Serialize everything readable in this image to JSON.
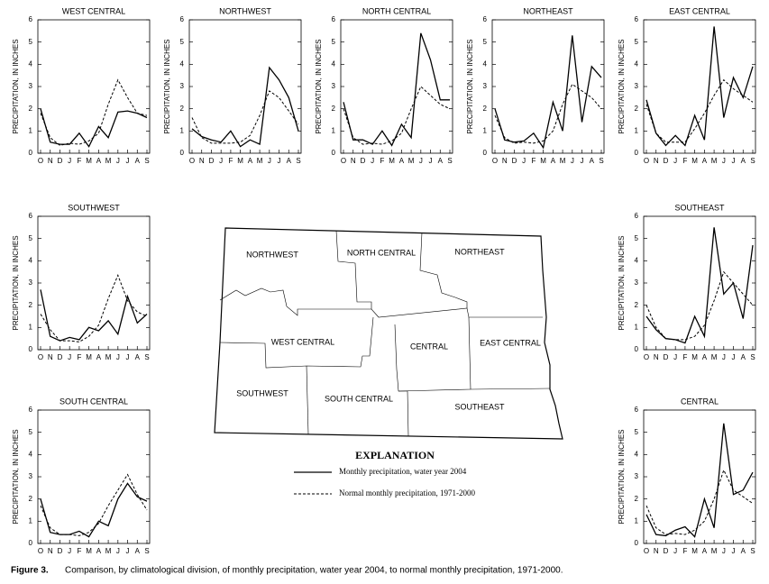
{
  "chart_data": [
    {
      "type": "line",
      "title": "WEST CENTRAL",
      "y_label": "PRECIPITATION, IN INCHES",
      "categories": [
        "O",
        "N",
        "D",
        "J",
        "F",
        "M",
        "A",
        "M",
        "J",
        "J",
        "A",
        "S"
      ],
      "ylim": [
        0,
        6
      ],
      "yticks": [
        0,
        1,
        2,
        3,
        4,
        5,
        6
      ],
      "series": [
        {
          "style": "solid",
          "color": "#000000",
          "values": [
            2.0,
            0.5,
            0.4,
            0.4,
            0.9,
            0.3,
            1.2,
            0.7,
            1.85,
            1.9,
            1.8,
            1.6
          ]
        },
        {
          "style": "dashed",
          "color": "#000000",
          "values": [
            1.8,
            0.7,
            0.35,
            0.45,
            0.4,
            0.55,
            0.9,
            2.2,
            3.3,
            2.5,
            1.8,
            1.7
          ]
        }
      ]
    },
    {
      "type": "line",
      "title": "NORTHWEST",
      "y_label": "PRECIPITATION, IN INCHES",
      "categories": [
        "O",
        "N",
        "D",
        "J",
        "F",
        "M",
        "A",
        "M",
        "J",
        "J",
        "A",
        "S"
      ],
      "ylim": [
        0,
        6
      ],
      "yticks": [
        0,
        1,
        2,
        3,
        4,
        5,
        6
      ],
      "series": [
        {
          "style": "solid",
          "color": "#000000",
          "values": [
            1.1,
            0.75,
            0.6,
            0.5,
            1.0,
            0.3,
            0.6,
            0.4,
            3.85,
            3.3,
            2.5,
            1.0
          ]
        },
        {
          "style": "dashed",
          "color": "#000000",
          "values": [
            1.6,
            0.7,
            0.45,
            0.45,
            0.45,
            0.5,
            0.8,
            1.7,
            2.8,
            2.5,
            1.9,
            1.3
          ]
        }
      ]
    },
    {
      "type": "line",
      "title": "NORTH CENTRAL",
      "y_label": "PRECIPITATION, IN INCHES",
      "categories": [
        "O",
        "N",
        "D",
        "J",
        "F",
        "M",
        "A",
        "M",
        "J",
        "J",
        "A",
        "S"
      ],
      "ylim": [
        0,
        6
      ],
      "yticks": [
        0,
        1,
        2,
        3,
        4,
        5,
        6
      ],
      "series": [
        {
          "style": "solid",
          "color": "#000000",
          "values": [
            2.3,
            0.6,
            0.6,
            0.4,
            1.0,
            0.35,
            1.3,
            0.7,
            5.4,
            4.2,
            2.4,
            2.4
          ]
        },
        {
          "style": "dashed",
          "color": "#000000",
          "values": [
            2.0,
            0.7,
            0.4,
            0.45,
            0.4,
            0.55,
            0.9,
            2.0,
            3.0,
            2.6,
            2.2,
            2.0
          ]
        }
      ]
    },
    {
      "type": "line",
      "title": "NORTHEAST",
      "y_label": "PRECIPITATION, IN INCHES",
      "categories": [
        "O",
        "N",
        "D",
        "J",
        "F",
        "M",
        "A",
        "M",
        "J",
        "J",
        "A",
        "S"
      ],
      "ylim": [
        0,
        6
      ],
      "yticks": [
        0,
        1,
        2,
        3,
        4,
        5,
        6
      ],
      "series": [
        {
          "style": "solid",
          "color": "#000000",
          "values": [
            2.0,
            0.6,
            0.5,
            0.55,
            0.9,
            0.25,
            2.3,
            1.0,
            5.3,
            1.4,
            3.9,
            3.4
          ]
        },
        {
          "style": "dashed",
          "color": "#000000",
          "values": [
            1.7,
            0.7,
            0.45,
            0.5,
            0.45,
            0.55,
            1.0,
            2.2,
            3.1,
            2.8,
            2.5,
            2.0
          ]
        }
      ]
    },
    {
      "type": "line",
      "title": "EAST CENTRAL",
      "y_label": "PRECIPITATION, IN INCHES",
      "categories": [
        "O",
        "N",
        "D",
        "J",
        "F",
        "M",
        "A",
        "M",
        "J",
        "J",
        "A",
        "S"
      ],
      "ylim": [
        0,
        6
      ],
      "yticks": [
        0,
        1,
        2,
        3,
        4,
        5,
        6
      ],
      "series": [
        {
          "style": "solid",
          "color": "#000000",
          "values": [
            2.4,
            0.9,
            0.35,
            0.8,
            0.35,
            1.7,
            0.6,
            5.7,
            1.6,
            3.4,
            2.5,
            3.9
          ]
        },
        {
          "style": "dashed",
          "color": "#000000",
          "values": [
            2.2,
            0.9,
            0.5,
            0.5,
            0.5,
            1.1,
            1.8,
            2.6,
            3.3,
            2.9,
            2.6,
            2.3
          ]
        }
      ]
    },
    {
      "type": "line",
      "title": "SOUTHWEST",
      "y_label": "PRECIPITATION, IN INCHES",
      "categories": [
        "O",
        "N",
        "D",
        "J",
        "F",
        "M",
        "A",
        "M",
        "J",
        "J",
        "A",
        "S"
      ],
      "ylim": [
        0,
        6
      ],
      "yticks": [
        0,
        1,
        2,
        3,
        4,
        5,
        6
      ],
      "series": [
        {
          "style": "solid",
          "color": "#000000",
          "values": [
            2.7,
            0.6,
            0.4,
            0.55,
            0.45,
            1.0,
            0.85,
            1.3,
            0.7,
            2.4,
            1.2,
            1.6
          ]
        },
        {
          "style": "dashed",
          "color": "#000000",
          "values": [
            1.6,
            0.9,
            0.4,
            0.4,
            0.35,
            0.6,
            1.1,
            2.3,
            3.35,
            2.2,
            1.7,
            1.5
          ]
        }
      ]
    },
    {
      "type": "line",
      "title": "SOUTHEAST",
      "y_label": "PRECIPITATION, IN INCHES",
      "categories": [
        "O",
        "N",
        "D",
        "J",
        "F",
        "M",
        "A",
        "M",
        "J",
        "J",
        "A",
        "S"
      ],
      "ylim": [
        0,
        6
      ],
      "yticks": [
        0,
        1,
        2,
        3,
        4,
        5,
        6
      ],
      "series": [
        {
          "style": "solid",
          "color": "#000000",
          "values": [
            1.5,
            0.9,
            0.5,
            0.45,
            0.3,
            1.5,
            0.6,
            5.5,
            2.5,
            3.0,
            1.4,
            4.7
          ]
        },
        {
          "style": "dashed",
          "color": "#000000",
          "values": [
            2.0,
            1.0,
            0.5,
            0.45,
            0.45,
            0.6,
            1.1,
            2.2,
            3.5,
            3.0,
            2.5,
            2.0
          ]
        }
      ]
    },
    {
      "type": "line",
      "title": "SOUTH CENTRAL",
      "y_label": "PRECIPITATION, IN INCHES",
      "categories": [
        "O",
        "N",
        "D",
        "J",
        "F",
        "M",
        "A",
        "M",
        "J",
        "J",
        "A",
        "S"
      ],
      "ylim": [
        0,
        6
      ],
      "yticks": [
        0,
        1,
        2,
        3,
        4,
        5,
        6
      ],
      "series": [
        {
          "style": "solid",
          "color": "#000000",
          "values": [
            2.0,
            0.5,
            0.4,
            0.4,
            0.55,
            0.3,
            1.0,
            0.8,
            2.0,
            2.7,
            2.1,
            1.9
          ]
        },
        {
          "style": "dashed",
          "color": "#000000",
          "values": [
            1.7,
            0.7,
            0.4,
            0.4,
            0.35,
            0.5,
            0.9,
            1.7,
            2.4,
            3.1,
            2.2,
            1.5
          ]
        }
      ]
    },
    {
      "type": "line",
      "title": "CENTRAL",
      "y_label": "PRECIPITATION, IN INCHES",
      "categories": [
        "O",
        "N",
        "D",
        "J",
        "F",
        "M",
        "A",
        "M",
        "J",
        "J",
        "A",
        "S"
      ],
      "ylim": [
        0,
        6
      ],
      "yticks": [
        0,
        1,
        2,
        3,
        4,
        5,
        6
      ],
      "series": [
        {
          "style": "solid",
          "color": "#000000",
          "values": [
            1.3,
            0.4,
            0.35,
            0.6,
            0.75,
            0.3,
            2.0,
            0.7,
            5.4,
            2.2,
            2.4,
            3.2
          ]
        },
        {
          "style": "dashed",
          "color": "#000000",
          "values": [
            1.7,
            0.7,
            0.4,
            0.45,
            0.4,
            0.6,
            1.0,
            2.0,
            3.3,
            2.4,
            2.1,
            1.8
          ]
        }
      ]
    }
  ],
  "map": {
    "labels": [
      "NORTHWEST",
      "NORTH CENTRAL",
      "NORTHEAST",
      "WEST CENTRAL",
      "CENTRAL",
      "EAST CENTRAL",
      "SOUTHWEST",
      "SOUTH CENTRAL",
      "SOUTHEAST"
    ]
  },
  "legend": {
    "title": "EXPLANATION",
    "entries": [
      {
        "style": "solid",
        "label": "Monthly precipitation, water year 2004"
      },
      {
        "style": "dashed",
        "label": "Normal monthly precipitation, 1971-2000"
      }
    ]
  },
  "caption": {
    "label": "Figure 3.",
    "text": "Comparison, by climatological division, of monthly precipitation, water year 2004, to normal monthly precipitation, 1971-2000."
  }
}
